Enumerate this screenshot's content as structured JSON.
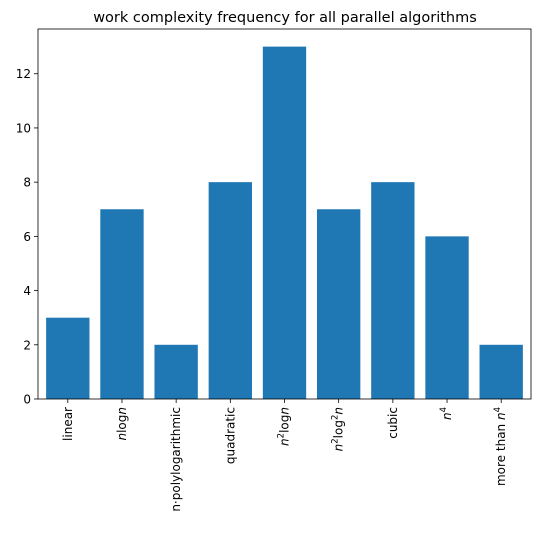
{
  "chart_data": {
    "type": "bar",
    "title": "work complexity frequency for all parallel algorithms",
    "xlabel": "",
    "ylabel": "",
    "categories": [
      {
        "label": "linear",
        "base": "linear",
        "sup": ""
      },
      {
        "label": "nlogn",
        "base": "nlogn",
        "sup": ""
      },
      {
        "label": "n·polylogarithmic",
        "base": "n·polylogarithmic",
        "sup": ""
      },
      {
        "label": "quadratic",
        "base": "quadratic",
        "sup": ""
      },
      {
        "label": "n2logn",
        "base": "n",
        "sup": "2",
        "after": "logn"
      },
      {
        "label": "n2log2n",
        "base": "n",
        "sup": "2",
        "after": "log",
        "sup2": "2",
        "after2": "n"
      },
      {
        "label": "cubic",
        "base": "cubic",
        "sup": ""
      },
      {
        "label": "n4",
        "base": "n",
        "sup": "4"
      },
      {
        "label": "more than n4",
        "base": "more than n",
        "sup": "4"
      }
    ],
    "values": [
      3,
      7,
      2,
      8,
      13,
      7,
      8,
      6,
      2
    ],
    "ylim": [
      0,
      13.65
    ],
    "yticks": [
      0,
      2,
      4,
      6,
      8,
      10,
      12
    ],
    "grid": false,
    "colors": {
      "bar": "#1f77b4"
    }
  }
}
